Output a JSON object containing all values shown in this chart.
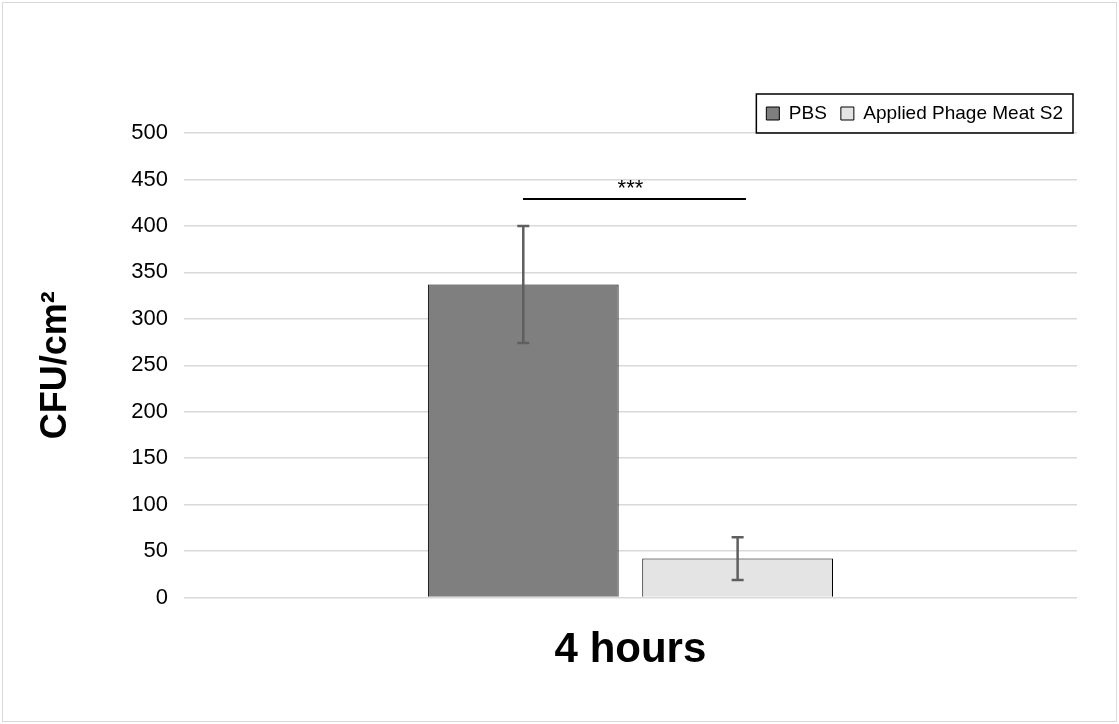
{
  "chart_data": {
    "type": "bar",
    "categories": [
      "4 hours"
    ],
    "ylabel": "CFU/cm²",
    "series": [
      {
        "name": "PBS",
        "color": "#7f7f7f",
        "values": [
          337
        ],
        "errors": [
          63
        ]
      },
      {
        "name": "Applied Phage Meat S2",
        "color": "#e4e4e4",
        "values": [
          42
        ],
        "errors": [
          23
        ]
      }
    ],
    "ylim": [
      0,
      500
    ],
    "yticks": [
      0,
      50,
      100,
      150,
      200,
      250,
      300,
      350,
      400,
      450,
      500
    ],
    "grid": "y",
    "legend": "top right",
    "annotations": [
      "***"
    ]
  }
}
